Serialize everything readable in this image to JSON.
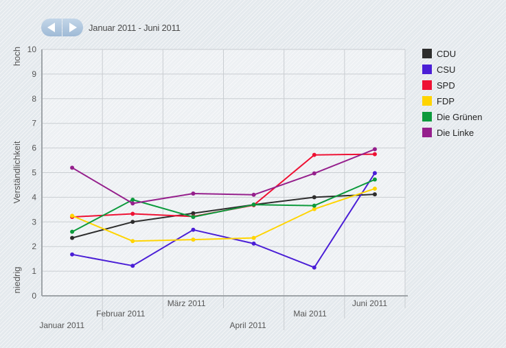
{
  "navigation": {
    "period_label": "Januar 2011 - Juni 2011",
    "prev_icon": "arrow-left-icon",
    "next_icon": "arrow-right-icon"
  },
  "chart_data": {
    "type": "line",
    "x": [
      "Januar 2011",
      "Februar 2011",
      "März 2011",
      "April 2011",
      "Mai 2011",
      "Juni 2011"
    ],
    "ylabel": "Verständlichkeit",
    "ylabel_high": "hoch",
    "ylabel_low": "niedrig",
    "ylim": [
      0,
      10
    ],
    "yticks": [
      0,
      1,
      2,
      3,
      4,
      5,
      6,
      7,
      8,
      9,
      10
    ],
    "grid": true,
    "legend_position": "right",
    "series": [
      {
        "name": "CDU",
        "color": "#2d2d2d",
        "values": [
          2.35,
          3.0,
          3.35,
          3.7,
          4.0,
          4.12
        ]
      },
      {
        "name": "CSU",
        "color": "#4a1ed6",
        "values": [
          1.68,
          1.22,
          2.68,
          2.12,
          1.15,
          4.98
        ]
      },
      {
        "name": "SPD",
        "color": "#ee1133",
        "values": [
          3.2,
          3.33,
          3.22,
          3.68,
          5.72,
          5.75
        ]
      },
      {
        "name": "FDP",
        "color": "#ffd400",
        "values": [
          3.25,
          2.22,
          2.28,
          2.35,
          3.52,
          4.35
        ]
      },
      {
        "name": "Die Grünen",
        "color": "#0c9a3c",
        "values": [
          2.6,
          3.9,
          3.2,
          3.7,
          3.66,
          4.72
        ]
      },
      {
        "name": "Die Linke",
        "color": "#951f8c",
        "values": [
          5.2,
          3.75,
          4.15,
          4.1,
          4.97,
          5.95
        ]
      }
    ]
  }
}
